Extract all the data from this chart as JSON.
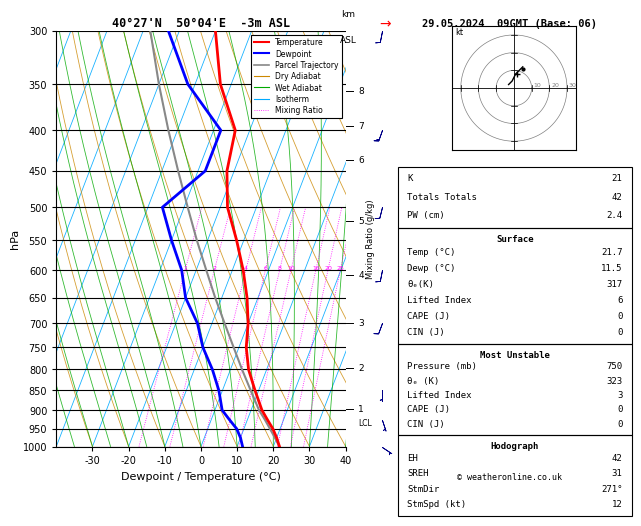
{
  "title_left": "40°27'N  50°04'E  -3m ASL",
  "title_right": "29.05.2024  09GMT (Base: 06)",
  "ylabel_left": "hPa",
  "xlabel": "Dewpoint / Temperature (°C)",
  "mixing_ratio_label": "Mixing Ratio (g/kg)",
  "pressure_levels": [
    300,
    350,
    400,
    450,
    500,
    550,
    600,
    650,
    700,
    750,
    800,
    850,
    900,
    950,
    1000
  ],
  "temp_ticks": [
    -30,
    -20,
    -10,
    0,
    10,
    20,
    30,
    40
  ],
  "km_ticks": [
    1,
    2,
    3,
    4,
    5,
    6,
    7,
    8
  ],
  "km_pressures": [
    898,
    797,
    700,
    608,
    520,
    436,
    395,
    357
  ],
  "color_temp": "#ff0000",
  "color_dewp": "#0000ff",
  "color_parcel": "#888888",
  "color_dry_adiabat": "#cc8800",
  "color_wet_adiabat": "#00aa00",
  "color_isotherm": "#00aaff",
  "color_mixing": "#ff00ff",
  "background": "#ffffff",
  "lcl_label": "LCL",
  "stats": {
    "K": 21,
    "Totals_Totals": 42,
    "PW_cm": 2.4,
    "Surface_Temp": 21.7,
    "Surface_Dewp": 11.5,
    "theta_e_surface": 317,
    "Lifted_Index_surface": 6,
    "CAPE_surface": 0,
    "CIN_surface": 0,
    "MU_Pressure_mb": 750,
    "theta_e_MU": 323,
    "Lifted_Index_MU": 3,
    "CAPE_MU": 0,
    "CIN_MU": 0,
    "EH": 42,
    "SREH": 31,
    "StmDir": 271,
    "StmSpd_kt": 12
  },
  "temp_profile_p": [
    1000,
    975,
    950,
    925,
    900,
    850,
    800,
    750,
    700,
    650,
    600,
    550,
    500,
    450,
    400,
    350,
    300
  ],
  "temp_profile_t": [
    21.7,
    20.0,
    18.0,
    15.5,
    13.0,
    9.0,
    5.0,
    2.0,
    0.0,
    -3.0,
    -7.0,
    -12.0,
    -18.0,
    -22.0,
    -24.0,
    -33.0,
    -40.0
  ],
  "dewp_profile_p": [
    1000,
    975,
    950,
    925,
    900,
    850,
    800,
    750,
    700,
    650,
    600,
    550,
    500,
    450,
    400,
    350,
    300
  ],
  "dewp_profile_t": [
    11.5,
    10.0,
    8.0,
    5.0,
    2.0,
    -1.0,
    -5.0,
    -10.0,
    -14.0,
    -20.0,
    -24.0,
    -30.0,
    -36.0,
    -28.0,
    -28.0,
    -42.0,
    -53.0
  ],
  "parcel_profile_p": [
    1000,
    975,
    950,
    925,
    900,
    850,
    800,
    750,
    700,
    650,
    600,
    550,
    500,
    450,
    400,
    350,
    300
  ],
  "parcel_profile_t": [
    21.7,
    19.5,
    17.2,
    14.8,
    12.2,
    7.8,
    3.2,
    -1.5,
    -6.5,
    -11.8,
    -17.2,
    -23.0,
    -29.0,
    -35.5,
    -42.5,
    -50.0,
    -58.0
  ],
  "lcl_pressure": 935,
  "wind_levels": [
    1000,
    975,
    950,
    925,
    900,
    850,
    800,
    750,
    700,
    650,
    600,
    550,
    500,
    450,
    400,
    350,
    300
  ],
  "wind_u": [
    -3,
    -2,
    -2,
    -1,
    -1,
    0,
    1,
    2,
    3,
    3,
    2,
    2,
    3,
    4,
    5,
    4,
    2
  ],
  "wind_v": [
    2,
    2,
    3,
    3,
    4,
    5,
    6,
    7,
    8,
    9,
    10,
    11,
    12,
    13,
    14,
    12,
    10
  ]
}
